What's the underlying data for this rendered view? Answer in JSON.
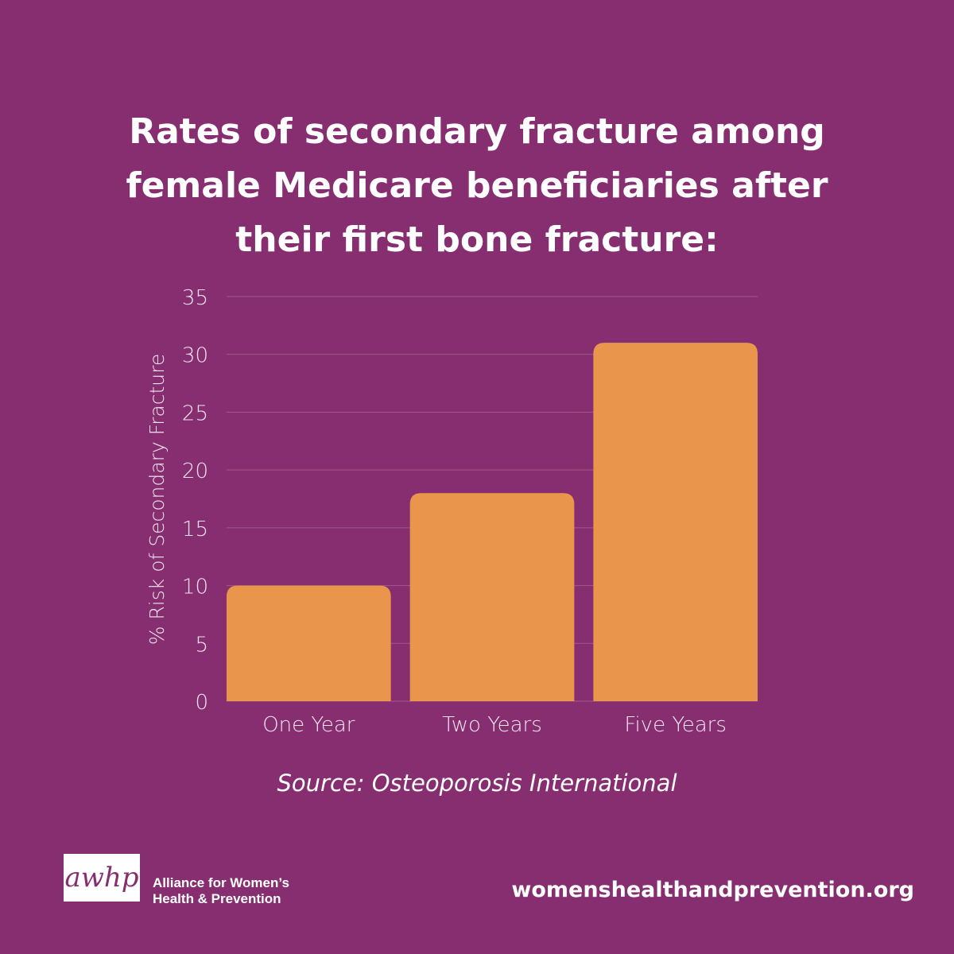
{
  "chart_data": {
    "type": "bar",
    "title_lines": [
      "Rates of secondary fracture among",
      "female Medicare beneficiaries after",
      "their first bone fracture:"
    ],
    "categories": [
      "One Year",
      "Two Years",
      "Five Years"
    ],
    "values": [
      10,
      18,
      31
    ],
    "ylabel": "% Risk of Secondary Fracture",
    "ylim": [
      0,
      35
    ],
    "yticks": [
      "0",
      "5",
      "10",
      "15",
      "20",
      "25",
      "30",
      "35"
    ],
    "grid": true,
    "bar_color": "#e9964c",
    "grid_color": "#a05a8c",
    "source": "Source: Osteoporosis International"
  },
  "footer": {
    "logo_text": "awhp",
    "org_lines": [
      "Alliance for Women’s",
      "Health & Prevention"
    ],
    "website": "womenshealthandprevention.org"
  },
  "colors": {
    "background": "#862e6f",
    "text": "#ffffff"
  }
}
